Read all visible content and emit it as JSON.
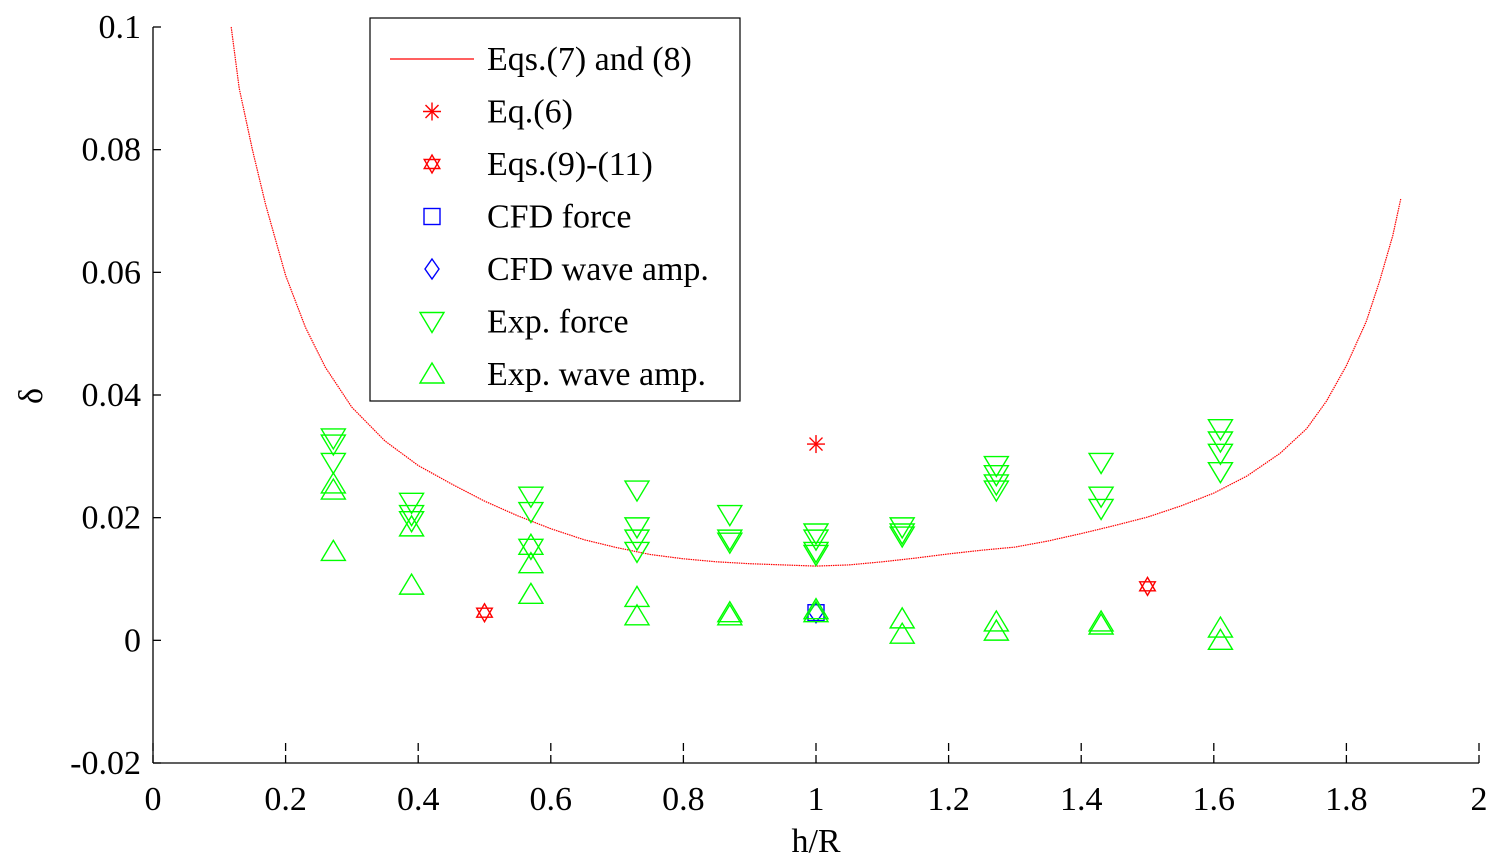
{
  "chart_data": {
    "type": "scatter",
    "title": "",
    "xlabel": "h/R",
    "ylabel": "δ",
    "xlim": [
      0,
      2
    ],
    "ylim": [
      -0.02,
      0.1
    ],
    "xticks": [
      0,
      0.2,
      0.4,
      0.6,
      0.8,
      1,
      1.2,
      1.4,
      1.6,
      1.8,
      2
    ],
    "xtick_labels": [
      "0",
      "0.2",
      "0.4",
      "0.6",
      "0.8",
      "1",
      "1.2",
      "1.4",
      "1.6",
      "1.8",
      "2"
    ],
    "yticks": [
      -0.02,
      0,
      0.02,
      0.04,
      0.06,
      0.08,
      0.1
    ],
    "ytick_labels": [
      "-0.02",
      "0",
      "0.02",
      "0.04",
      "0.06",
      "0.08",
      "0.1"
    ],
    "grid": false,
    "legend_position": "top-center",
    "series": [
      {
        "name": "Eqs.(7) and (8)",
        "kind": "line",
        "color": "#ff0000",
        "x": [
          0.118,
          0.13,
          0.15,
          0.17,
          0.2,
          0.23,
          0.26,
          0.3,
          0.35,
          0.4,
          0.45,
          0.5,
          0.55,
          0.6,
          0.65,
          0.7,
          0.75,
          0.8,
          0.85,
          0.9,
          0.95,
          1.0,
          1.05,
          1.1,
          1.15,
          1.2,
          1.25,
          1.3,
          1.35,
          1.4,
          1.45,
          1.5,
          1.55,
          1.6,
          1.65,
          1.7,
          1.74,
          1.77,
          1.8,
          1.83,
          1.85,
          1.87,
          1.882
        ],
        "y": [
          0.1,
          0.09,
          0.08,
          0.071,
          0.0595,
          0.051,
          0.0445,
          0.038,
          0.0325,
          0.0285,
          0.0255,
          0.0227,
          0.0203,
          0.0182,
          0.0164,
          0.0151,
          0.014,
          0.0133,
          0.0128,
          0.0125,
          0.0123,
          0.0121,
          0.0123,
          0.0128,
          0.0134,
          0.0141,
          0.0147,
          0.0152,
          0.0162,
          0.0174,
          0.0187,
          0.0201,
          0.0219,
          0.024,
          0.0268,
          0.0305,
          0.0345,
          0.039,
          0.0448,
          0.052,
          0.0585,
          0.066,
          0.072
        ]
      },
      {
        "name": "Eq.(6)",
        "kind": "marker",
        "marker": "asterisk",
        "color": "#ff0000",
        "x": [
          1.0
        ],
        "y": [
          0.032
        ]
      },
      {
        "name": "Eqs.(9)-(11)",
        "kind": "marker",
        "marker": "hexagram",
        "color": "#ff0000",
        "x": [
          0.5,
          1.5
        ],
        "y": [
          0.0045,
          0.0088
        ]
      },
      {
        "name": "CFD force",
        "kind": "marker",
        "marker": "square",
        "color": "#0000ff",
        "x": [
          1.0
        ],
        "y": [
          0.0045
        ]
      },
      {
        "name": "CFD wave amp.",
        "kind": "marker",
        "marker": "diamond",
        "color": "#0000ff",
        "x": [
          1.0
        ],
        "y": [
          0.0045
        ]
      },
      {
        "name": "Exp. force",
        "kind": "marker",
        "marker": "triangle-down",
        "color": "#00ff00",
        "x": [
          0.272,
          0.272,
          0.272,
          0.39,
          0.39,
          0.39,
          0.57,
          0.57,
          0.57,
          0.73,
          0.73,
          0.73,
          0.73,
          0.87,
          0.87,
          0.87,
          1.0,
          1.0,
          1.0,
          1.0,
          1.13,
          1.13,
          1.13,
          1.272,
          1.272,
          1.272,
          1.272,
          1.43,
          1.43,
          1.43,
          1.61,
          1.61,
          1.61,
          1.61
        ],
        "y": [
          0.033,
          0.032,
          0.029,
          0.0225,
          0.0205,
          0.0195,
          0.0235,
          0.021,
          0.015,
          0.0245,
          0.0185,
          0.0165,
          0.0145,
          0.0205,
          0.0165,
          0.016,
          0.0175,
          0.0165,
          0.0145,
          0.014,
          0.0185,
          0.0175,
          0.017,
          0.0285,
          0.027,
          0.0255,
          0.0245,
          0.029,
          0.0235,
          0.0215,
          0.0345,
          0.0325,
          0.0305,
          0.0275
        ]
      },
      {
        "name": "Exp. wave amp.",
        "kind": "marker",
        "marker": "triangle-up",
        "color": "#00ff00",
        "x": [
          0.272,
          0.272,
          0.272,
          0.39,
          0.39,
          0.57,
          0.57,
          0.57,
          0.73,
          0.73,
          0.87,
          0.87,
          1.0,
          1.0,
          1.13,
          1.13,
          1.272,
          1.272,
          1.43,
          1.43,
          1.61,
          1.61
        ],
        "y": [
          0.0255,
          0.0245,
          0.0145,
          0.0185,
          0.009,
          0.0155,
          0.0125,
          0.0075,
          0.007,
          0.004,
          0.0045,
          0.004,
          0.005,
          0.0045,
          0.0035,
          0.001,
          0.003,
          0.0015,
          0.003,
          0.0025,
          0.002,
          0.0
        ]
      }
    ]
  }
}
